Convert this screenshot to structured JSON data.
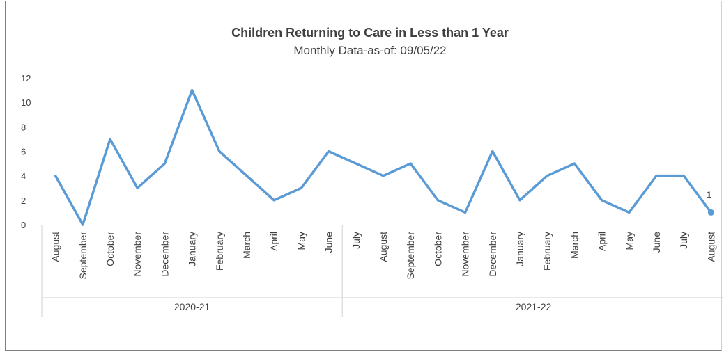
{
  "chart_data": {
    "type": "line",
    "title": "Children Returning to Care in Less than 1 Year",
    "subtitle": "Monthly Data-as-of: 09/05/22",
    "xlabel": "",
    "ylabel": "",
    "ylim": [
      0,
      12
    ],
    "yticks": [
      "0",
      "2",
      "4",
      "6",
      "8",
      "10",
      "12"
    ],
    "grid": false,
    "legend": "none",
    "line_color": "#5b9bd5",
    "categories": [
      "August",
      "September",
      "October",
      "November",
      "December",
      "January",
      "February",
      "March",
      "April",
      "May",
      "June",
      "July",
      "August",
      "September",
      "October",
      "November",
      "December",
      "January",
      "February",
      "March",
      "April",
      "May",
      "June",
      "July",
      "August"
    ],
    "groups": [
      {
        "label": "2020-21",
        "count": 11
      },
      {
        "label": "2021-22",
        "count": 14
      }
    ],
    "series": [
      {
        "values": [
          4,
          0,
          7,
          3,
          5,
          11,
          6,
          4,
          2,
          3,
          6,
          5,
          4,
          5,
          2,
          1,
          6,
          2,
          4,
          5,
          2,
          1,
          4,
          4,
          1
        ]
      }
    ],
    "data_labels": [
      {
        "index": 24,
        "text": "1"
      }
    ]
  }
}
